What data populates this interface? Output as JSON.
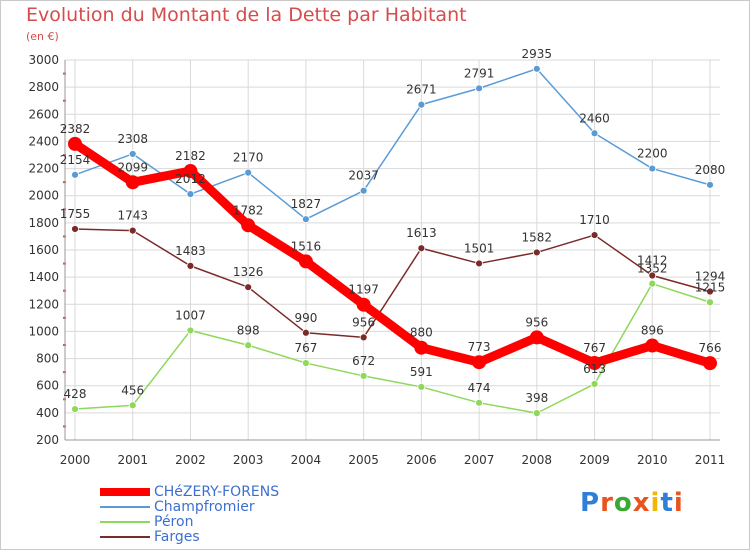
{
  "title": "Evolution du Montant de la Dette par Habitant",
  "unit": "(en €)",
  "logo": "Proxiti",
  "chart_data": {
    "type": "line",
    "x": [
      "2000",
      "2001",
      "2002",
      "2003",
      "2004",
      "2005",
      "2006",
      "2007",
      "2008",
      "2009",
      "2010",
      "2011"
    ],
    "ylim": [
      200,
      3000
    ],
    "yticks": [
      200,
      400,
      600,
      800,
      1000,
      1200,
      1400,
      1600,
      1800,
      2000,
      2200,
      2400,
      2600,
      2800,
      3000
    ],
    "grid": true,
    "legend_position": "bottom-left",
    "series": [
      {
        "name": "CHéZERY-FORENS",
        "color": "#ff0000",
        "values": [
          2382,
          2099,
          2182,
          1782,
          1516,
          1197,
          880,
          773,
          956,
          767,
          896,
          766
        ]
      },
      {
        "name": "Champfromier",
        "color": "#5b9bd5",
        "values": [
          2154,
          2308,
          2012,
          2170,
          1827,
          2037,
          2671,
          2791,
          2935,
          2460,
          2200,
          2080
        ]
      },
      {
        "name": "Péron",
        "color": "#8ed85a",
        "values": [
          428,
          456,
          1007,
          898,
          767,
          672,
          591,
          474,
          398,
          613,
          1352,
          1215
        ]
      },
      {
        "name": "Farges",
        "color": "#7b2a2a",
        "values": [
          1755,
          1743,
          1483,
          1326,
          990,
          956,
          1613,
          1501,
          1582,
          1710,
          1412,
          1294
        ]
      }
    ]
  }
}
